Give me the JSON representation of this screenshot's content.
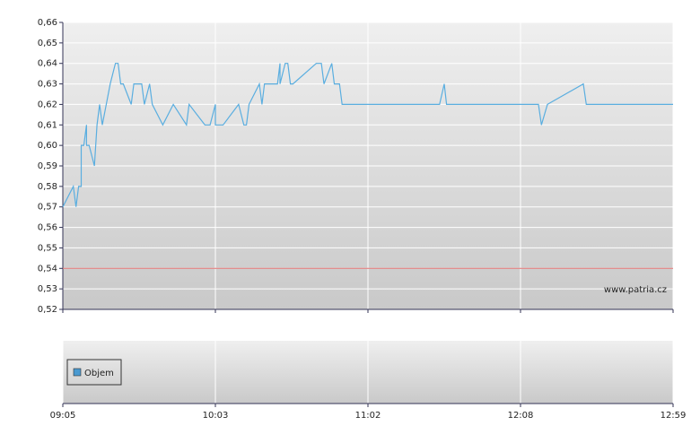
{
  "chart_data": [
    {
      "type": "line",
      "x": [
        "09:05",
        "09:09",
        "09:10",
        "09:10",
        "09:11",
        "09:12",
        "09:12",
        "09:13",
        "09:14",
        "09:14",
        "09:15",
        "09:17",
        "09:18",
        "09:18",
        "09:19",
        "09:20",
        "09:23",
        "09:25",
        "09:26",
        "09:27",
        "09:28",
        "09:31",
        "09:31",
        "09:32",
        "09:35",
        "09:36",
        "09:38",
        "09:38",
        "09:39",
        "09:43",
        "09:47",
        "09:52",
        "09:53",
        "09:59",
        "10:01",
        "10:03",
        "10:03",
        "10:06",
        "10:12",
        "10:14",
        "10:15",
        "10:16",
        "10:20",
        "10:21",
        "10:22",
        "10:27",
        "10:28",
        "10:28",
        "10:30",
        "10:31",
        "10:32",
        "10:33",
        "10:42",
        "10:44",
        "10:45",
        "10:48",
        "10:49",
        "10:51",
        "10:52",
        "11:33",
        "11:35",
        "11:36",
        "12:14",
        "12:15",
        "12:17",
        "12:29",
        "12:30",
        "12:59"
      ],
      "series": [
        {
          "color": "#5aaee0",
          "values": [
            0.57,
            0.58,
            0.57,
            0.57,
            0.58,
            0.58,
            0.6,
            0.6,
            0.61,
            0.6,
            0.6,
            0.59,
            0.61,
            0.61,
            0.62,
            0.61,
            0.63,
            0.64,
            0.64,
            0.63,
            0.63,
            0.62,
            0.62,
            0.63,
            0.63,
            0.62,
            0.63,
            0.63,
            0.62,
            0.61,
            0.62,
            0.61,
            0.62,
            0.61,
            0.61,
            0.62,
            0.61,
            0.61,
            0.62,
            0.61,
            0.61,
            0.62,
            0.63,
            0.62,
            0.63,
            0.63,
            0.64,
            0.63,
            0.64,
            0.64,
            0.63,
            0.63,
            0.64,
            0.64,
            0.63,
            0.64,
            0.63,
            0.63,
            0.62,
            0.62,
            0.63,
            0.62,
            0.62,
            0.61,
            0.62,
            0.63,
            0.62,
            0.62
          ]
        }
      ],
      "reference_line": 0.54,
      "reference_color": "#e07070",
      "annotation": "www.patria.cz",
      "ylim": [
        0.52,
        0.66
      ],
      "yticks": [
        {
          "value": 0.52,
          "label": "0,52"
        },
        {
          "value": 0.53,
          "label": "0,53"
        },
        {
          "value": 0.54,
          "label": "0,54"
        },
        {
          "value": 0.55,
          "label": "0,55"
        },
        {
          "value": 0.56,
          "label": "0,56"
        },
        {
          "value": 0.57,
          "label": "0,57"
        },
        {
          "value": 0.58,
          "label": "0,58"
        },
        {
          "value": 0.59,
          "label": "0,59"
        },
        {
          "value": 0.6,
          "label": "0,60"
        },
        {
          "value": 0.61,
          "label": "0,61"
        },
        {
          "value": 0.62,
          "label": "0,62"
        },
        {
          "value": 0.63,
          "label": "0,63"
        },
        {
          "value": 0.64,
          "label": "0,64"
        },
        {
          "value": 0.65,
          "label": "0,65"
        },
        {
          "value": 0.66,
          "label": "0,66"
        }
      ],
      "xlim": [
        "09:05",
        "12:59"
      ],
      "xticks": [
        "09:05",
        "10:03",
        "11:02",
        "12:08",
        "12:59"
      ],
      "grid": true
    },
    {
      "type": "bar",
      "series": [
        {
          "name": "Objem",
          "color": "#4a9ad0",
          "values": []
        }
      ],
      "legend": "left"
    }
  ]
}
